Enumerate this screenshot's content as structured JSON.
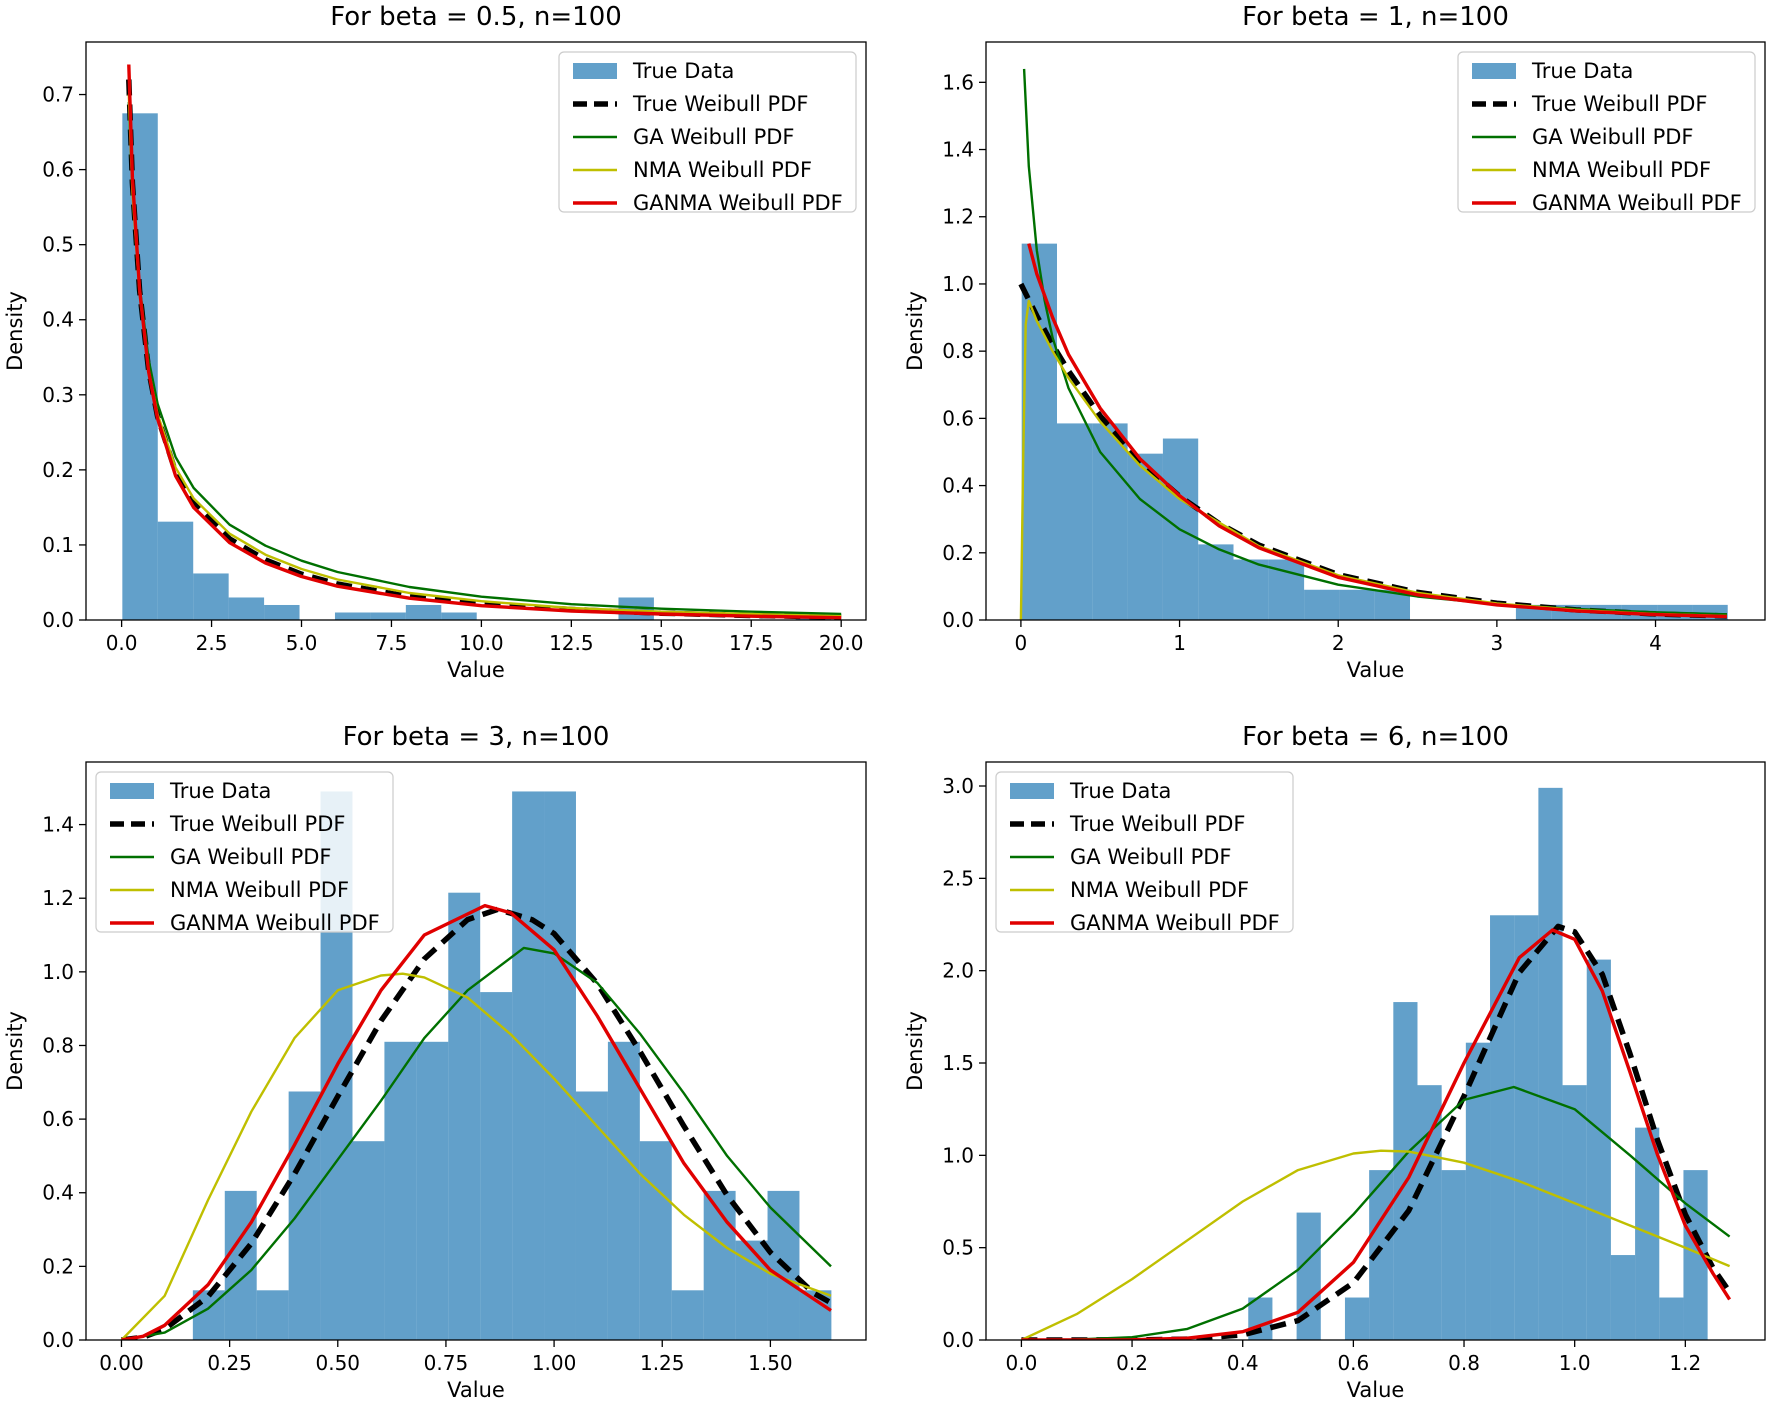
{
  "legend_entries": [
    "True Data",
    "True Weibull PDF",
    "GA Weibull PDF",
    "NMA Weibull PDF",
    "GANMA Weibull PDF"
  ],
  "colors": {
    "hist": "#1f77b4",
    "true_pdf": "#000000",
    "ga": "#007000",
    "nma": "#bfbf00",
    "ganma": "#e00000"
  },
  "chart_data": [
    {
      "type": "histogram+line",
      "title": "For beta = 0.5, n=100",
      "xlabel": "Value",
      "ylabel": "Density",
      "xlim": [
        -0.99,
        20.69
      ],
      "ylim": [
        0,
        0.77
      ],
      "xticks": [
        0,
        2.5,
        5,
        7.5,
        10,
        12.5,
        15,
        17.5,
        20
      ],
      "xtick_labels": [
        "0.0",
        "2.5",
        "5.0",
        "7.5",
        "10.0",
        "12.5",
        "15.0",
        "17.5",
        "20.0"
      ],
      "yticks": [
        0,
        0.1,
        0.2,
        0.3,
        0.4,
        0.5,
        0.6,
        0.7
      ],
      "ytick_labels": [
        "0.0",
        "0.1",
        "0.2",
        "0.3",
        "0.4",
        "0.5",
        "0.6",
        "0.7"
      ],
      "legend_position": "upper right",
      "bins": {
        "x0": 0.02,
        "width": 0.985,
        "heights": [
          0.675,
          0.131,
          0.062,
          0.03,
          0.02,
          0.0,
          0.01,
          0.01,
          0.02,
          0.01,
          0.0,
          0.0,
          0.0,
          0.0,
          0.03,
          0.0,
          0.0,
          0.0,
          0.0,
          0.01
        ]
      },
      "series": [
        {
          "name": "True Weibull PDF",
          "x": [
            0.2,
            0.3,
            0.5,
            0.75,
            1,
            1.5,
            2,
            3,
            4,
            5,
            6,
            8,
            10,
            12.5,
            15,
            17.5,
            20
          ],
          "y": [
            0.72,
            0.582,
            0.439,
            0.333,
            0.271,
            0.197,
            0.155,
            0.108,
            0.08,
            0.061,
            0.048,
            0.031,
            0.021,
            0.014,
            0.009,
            0.006,
            0.004
          ]
        },
        {
          "name": "GA Weibull PDF",
          "x": [
            0.2,
            0.3,
            0.5,
            0.75,
            1,
            1.5,
            2,
            3,
            4,
            5,
            6,
            8,
            10,
            12.5,
            15,
            17.5,
            20
          ],
          "y": [
            0.69,
            0.575,
            0.445,
            0.347,
            0.288,
            0.217,
            0.176,
            0.127,
            0.099,
            0.079,
            0.064,
            0.044,
            0.031,
            0.021,
            0.015,
            0.011,
            0.008
          ]
        },
        {
          "name": "NMA Weibull PDF",
          "x": [
            0.2,
            0.3,
            0.5,
            0.75,
            1,
            1.5,
            2,
            3,
            4,
            5,
            6,
            8,
            10,
            12.5,
            15,
            17.5,
            20
          ],
          "y": [
            0.7,
            0.57,
            0.435,
            0.333,
            0.274,
            0.203,
            0.162,
            0.115,
            0.087,
            0.068,
            0.054,
            0.036,
            0.025,
            0.016,
            0.011,
            0.008,
            0.005
          ]
        },
        {
          "name": "GANMA Weibull PDF",
          "x": [
            0.2,
            0.3,
            0.5,
            0.75,
            1,
            1.5,
            2,
            3,
            4,
            5,
            6,
            8,
            10,
            12.5,
            15,
            17.5,
            20
          ],
          "y": [
            0.74,
            0.59,
            0.44,
            0.331,
            0.268,
            0.192,
            0.15,
            0.103,
            0.076,
            0.058,
            0.045,
            0.029,
            0.019,
            0.012,
            0.008,
            0.005,
            0.003
          ]
        }
      ]
    },
    {
      "type": "histogram+line",
      "title": "For beta = 1, n=100",
      "xlabel": "Value",
      "ylabel": "Density",
      "xlim": [
        -0.22,
        4.69
      ],
      "ylim": [
        0,
        1.72
      ],
      "xticks": [
        0,
        1,
        2,
        3,
        4
      ],
      "xtick_labels": [
        "0",
        "1",
        "2",
        "3",
        "4"
      ],
      "yticks": [
        0,
        0.2,
        0.4,
        0.6,
        0.8,
        1.0,
        1.2,
        1.4,
        1.6
      ],
      "ytick_labels": [
        "0.0",
        "0.2",
        "0.4",
        "0.6",
        "0.8",
        "1.0",
        "1.2",
        "1.4",
        "1.6"
      ],
      "legend_position": "upper right",
      "bins": {
        "x0": 0.005,
        "width": 0.2225,
        "heights": [
          1.12,
          0.585,
          0.585,
          0.495,
          0.54,
          0.225,
          0.18,
          0.18,
          0.09,
          0.09,
          0.09,
          0.0,
          0.0,
          0.0,
          0.045,
          0.045,
          0.045,
          0.045,
          0.045,
          0.045
        ]
      },
      "series": [
        {
          "name": "True Weibull PDF",
          "x": [
            0.0,
            0.1,
            0.2,
            0.3,
            0.5,
            0.75,
            1.0,
            1.25,
            1.5,
            2.0,
            2.5,
            3.0,
            3.5,
            4.0,
            4.45
          ],
          "y": [
            1.0,
            0.905,
            0.819,
            0.741,
            0.607,
            0.472,
            0.368,
            0.287,
            0.223,
            0.135,
            0.082,
            0.05,
            0.03,
            0.018,
            0.012
          ]
        },
        {
          "name": "GA Weibull PDF",
          "x": [
            0.02,
            0.05,
            0.1,
            0.15,
            0.2,
            0.3,
            0.5,
            0.75,
            1.0,
            1.25,
            1.5,
            2.0,
            2.5,
            3.0,
            3.5,
            4.0,
            4.45
          ],
          "y": [
            1.64,
            1.35,
            1.1,
            0.95,
            0.84,
            0.69,
            0.5,
            0.36,
            0.27,
            0.21,
            0.165,
            0.105,
            0.07,
            0.047,
            0.033,
            0.023,
            0.017
          ]
        },
        {
          "name": "NMA Weibull PDF",
          "x": [
            0.0,
            0.015,
            0.03,
            0.05,
            0.1,
            0.2,
            0.3,
            0.5,
            0.75,
            1.0,
            1.5,
            2.0,
            2.5,
            3.0,
            3.5,
            4.0,
            4.45
          ],
          "y": [
            0.0,
            0.5,
            0.88,
            0.95,
            0.89,
            0.8,
            0.72,
            0.59,
            0.46,
            0.36,
            0.22,
            0.133,
            0.081,
            0.049,
            0.03,
            0.018,
            0.012
          ]
        },
        {
          "name": "GANMA Weibull PDF",
          "x": [
            0.05,
            0.1,
            0.2,
            0.3,
            0.5,
            0.75,
            1.0,
            1.25,
            1.5,
            2.0,
            2.5,
            3.0,
            3.5,
            4.0,
            4.45
          ],
          "y": [
            1.12,
            1.03,
            0.9,
            0.79,
            0.63,
            0.48,
            0.37,
            0.28,
            0.215,
            0.127,
            0.075,
            0.045,
            0.027,
            0.016,
            0.01
          ]
        }
      ]
    },
    {
      "type": "histogram+line",
      "title": "For beta = 3, n=100",
      "xlabel": "Value",
      "ylabel": "Density",
      "xlim": [
        -0.082,
        1.721
      ],
      "ylim": [
        0,
        1.57
      ],
      "xticks": [
        0,
        0.25,
        0.5,
        0.75,
        1.0,
        1.25,
        1.5
      ],
      "xtick_labels": [
        "0.00",
        "0.25",
        "0.50",
        "0.75",
        "1.00",
        "1.25",
        "1.50"
      ],
      "yticks": [
        0,
        0.2,
        0.4,
        0.6,
        0.8,
        1.0,
        1.2,
        1.4
      ],
      "ytick_labels": [
        "0.0",
        "0.2",
        "0.4",
        "0.6",
        "0.8",
        "1.0",
        "1.2",
        "1.4"
      ],
      "legend_position": "upper left",
      "bins": {
        "x0": 0.165,
        "width": 0.0738,
        "heights": [
          0.135,
          0.405,
          0.135,
          0.675,
          1.49,
          0.54,
          0.81,
          0.81,
          1.215,
          0.945,
          1.49,
          1.49,
          0.675,
          0.81,
          0.54,
          0.135,
          0.405,
          0.27,
          0.405,
          0.135
        ]
      },
      "series": [
        {
          "name": "True Weibull PDF",
          "x": [
            0.0,
            0.05,
            0.1,
            0.2,
            0.3,
            0.4,
            0.5,
            0.6,
            0.7,
            0.8,
            0.87,
            0.95,
            1.0,
            1.1,
            1.2,
            1.3,
            1.4,
            1.5,
            1.6,
            1.64
          ],
          "y": [
            0.0,
            0.0075,
            0.03,
            0.118,
            0.262,
            0.451,
            0.662,
            0.867,
            1.035,
            1.142,
            1.17,
            1.141,
            1.104,
            0.968,
            0.781,
            0.581,
            0.393,
            0.238,
            0.127,
            0.101
          ]
        },
        {
          "name": "GA Weibull PDF",
          "x": [
            0.0,
            0.1,
            0.2,
            0.3,
            0.4,
            0.5,
            0.6,
            0.7,
            0.8,
            0.93,
            1.0,
            1.1,
            1.2,
            1.3,
            1.4,
            1.5,
            1.64
          ],
          "y": [
            0.0,
            0.02,
            0.085,
            0.19,
            0.33,
            0.49,
            0.65,
            0.82,
            0.95,
            1.065,
            1.05,
            0.97,
            0.83,
            0.67,
            0.5,
            0.36,
            0.2
          ]
        },
        {
          "name": "NMA Weibull PDF",
          "x": [
            0.0,
            0.1,
            0.2,
            0.3,
            0.4,
            0.5,
            0.6,
            0.65,
            0.7,
            0.8,
            0.9,
            1.0,
            1.1,
            1.2,
            1.3,
            1.4,
            1.5,
            1.64
          ],
          "y": [
            0.0,
            0.12,
            0.38,
            0.62,
            0.82,
            0.95,
            0.99,
            0.995,
            0.985,
            0.93,
            0.83,
            0.71,
            0.58,
            0.45,
            0.34,
            0.25,
            0.18,
            0.12
          ]
        },
        {
          "name": "GANMA Weibull PDF",
          "x": [
            0.0,
            0.05,
            0.1,
            0.2,
            0.3,
            0.4,
            0.5,
            0.6,
            0.7,
            0.84,
            0.9,
            1.0,
            1.1,
            1.2,
            1.3,
            1.4,
            1.5,
            1.64
          ],
          "y": [
            0.0,
            0.01,
            0.04,
            0.15,
            0.32,
            0.53,
            0.75,
            0.95,
            1.1,
            1.18,
            1.16,
            1.06,
            0.88,
            0.68,
            0.48,
            0.32,
            0.19,
            0.08
          ]
        }
      ]
    },
    {
      "type": "histogram+line",
      "title": "For beta = 6, n=100",
      "xlabel": "Value",
      "ylabel": "Density",
      "xlim": [
        -0.064,
        1.344
      ],
      "ylim": [
        0,
        3.13
      ],
      "xticks": [
        0,
        0.2,
        0.4,
        0.6,
        0.8,
        1.0,
        1.2
      ],
      "xtick_labels": [
        "0.0",
        "0.2",
        "0.4",
        "0.6",
        "0.8",
        "1.0",
        "1.2"
      ],
      "yticks": [
        0,
        0.5,
        1.0,
        1.5,
        2.0,
        2.5,
        3.0
      ],
      "ytick_labels": [
        "0.0",
        "0.5",
        "1.0",
        "1.5",
        "2.0",
        "2.5",
        "3.0"
      ],
      "legend_position": "upper left",
      "bins": {
        "x0": 0.41,
        "width": 0.0437,
        "heights": [
          0.23,
          0.0,
          0.69,
          0.0,
          0.23,
          0.92,
          1.83,
          1.38,
          0.92,
          1.61,
          2.3,
          2.3,
          2.99,
          1.38,
          2.06,
          0.46,
          1.15,
          0.23,
          0.92
        ]
      },
      "series": [
        {
          "name": "True Weibull PDF",
          "x": [
            0.0,
            0.2,
            0.3,
            0.4,
            0.5,
            0.6,
            0.7,
            0.8,
            0.9,
            0.97,
            1.0,
            1.05,
            1.1,
            1.15,
            1.2,
            1.25,
            1.28
          ],
          "y": [
            0.0,
            0.0004,
            0.005,
            0.028,
            0.105,
            0.31,
            0.7,
            1.32,
            1.99,
            2.24,
            2.21,
            1.98,
            1.55,
            1.08,
            0.68,
            0.39,
            0.26
          ]
        },
        {
          "name": "GA Weibull PDF",
          "x": [
            0.0,
            0.1,
            0.2,
            0.3,
            0.4,
            0.5,
            0.6,
            0.7,
            0.8,
            0.89,
            1.0,
            1.1,
            1.2,
            1.28
          ],
          "y": [
            0.0,
            0.003,
            0.015,
            0.06,
            0.17,
            0.38,
            0.68,
            1.02,
            1.3,
            1.37,
            1.25,
            1.0,
            0.74,
            0.56
          ]
        },
        {
          "name": "NMA Weibull PDF",
          "x": [
            0.0,
            0.1,
            0.2,
            0.3,
            0.4,
            0.5,
            0.6,
            0.65,
            0.7,
            0.8,
            0.9,
            1.0,
            1.1,
            1.2,
            1.28
          ],
          "y": [
            0.0,
            0.14,
            0.33,
            0.54,
            0.75,
            0.92,
            1.01,
            1.025,
            1.02,
            0.96,
            0.86,
            0.74,
            0.62,
            0.5,
            0.4
          ]
        },
        {
          "name": "GANMA Weibull PDF",
          "x": [
            0.0,
            0.2,
            0.3,
            0.4,
            0.5,
            0.6,
            0.7,
            0.8,
            0.9,
            0.96,
            1.0,
            1.05,
            1.1,
            1.15,
            1.2,
            1.25,
            1.28
          ],
          "y": [
            0.0,
            0.001,
            0.01,
            0.045,
            0.15,
            0.42,
            0.88,
            1.5,
            2.07,
            2.22,
            2.17,
            1.89,
            1.45,
            1.0,
            0.62,
            0.36,
            0.22
          ]
        }
      ]
    }
  ]
}
